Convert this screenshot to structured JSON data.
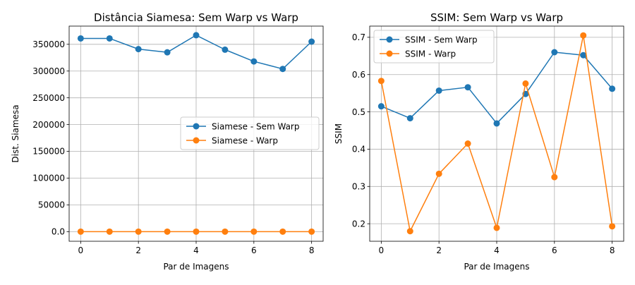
{
  "chart_data": [
    {
      "type": "line",
      "title": "Distância Siamesa: Sem Warp vs Warp",
      "xlabel": "Par de Imagens",
      "ylabel": "Dist. Siamesa",
      "x": [
        0,
        1,
        2,
        3,
        4,
        5,
        6,
        7,
        8
      ],
      "xlim": [
        -0.4,
        8.4
      ],
      "ylim": [
        -18000,
        384000
      ],
      "xticks": [
        0,
        2,
        4,
        6,
        8
      ],
      "yticks": [
        0,
        50000,
        100000,
        150000,
        200000,
        250000,
        300000,
        350000
      ],
      "grid": true,
      "legend_position": "center-right",
      "series": [
        {
          "name": "Siamese - Sem Warp",
          "color": "#1f77b4",
          "values": [
            361000,
            361000,
            341000,
            335000,
            367000,
            340000,
            318000,
            304000,
            355000
          ]
        },
        {
          "name": "Siamese - Warp",
          "color": "#ff7f0e",
          "values": [
            0,
            0,
            0,
            0,
            0,
            0,
            0,
            0,
            0
          ]
        }
      ]
    },
    {
      "type": "line",
      "title": "SSIM: Sem Warp vs Warp",
      "xlabel": "Par de Imagens",
      "ylabel": "SSIM",
      "x": [
        0,
        1,
        2,
        3,
        4,
        5,
        6,
        7,
        8
      ],
      "xlim": [
        -0.4,
        8.4
      ],
      "ylim": [
        0.153,
        0.73
      ],
      "xticks": [
        0,
        2,
        4,
        6,
        8
      ],
      "yticks": [
        0.2,
        0.3,
        0.4,
        0.5,
        0.6,
        0.7
      ],
      "grid": true,
      "legend_position": "top-left",
      "series": [
        {
          "name": "SSIM - Sem Warp",
          "color": "#1f77b4",
          "values": [
            0.515,
            0.483,
            0.557,
            0.566,
            0.469,
            0.548,
            0.66,
            0.652,
            0.562
          ]
        },
        {
          "name": "SSIM - Warp",
          "color": "#ff7f0e",
          "values": [
            0.583,
            0.18,
            0.334,
            0.415,
            0.189,
            0.576,
            0.325,
            0.705,
            0.193
          ]
        }
      ]
    }
  ]
}
